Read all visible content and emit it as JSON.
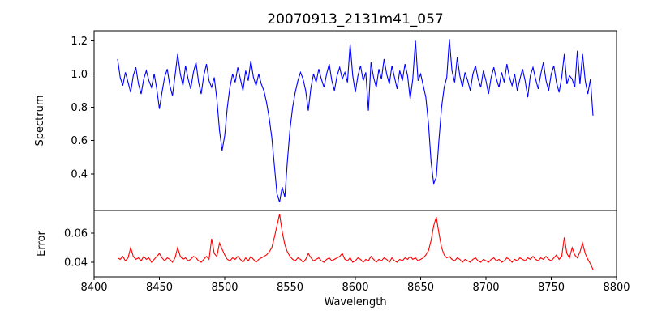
{
  "title": "20070913_2131m41_057",
  "colors": {
    "background": "#ffffff",
    "axis": "#000000",
    "spectrum_line": "#0000ff",
    "error_line": "#ff0000"
  },
  "chart_data": {
    "type": "line",
    "title": "20070913_2131m41_057",
    "xlabel": "Wavelength",
    "xlim": [
      8400,
      8800
    ],
    "xticks": [
      8400,
      8450,
      8500,
      8550,
      8600,
      8650,
      8700,
      8750,
      8800
    ],
    "xtick_labels": [
      "8400",
      "8450",
      "8500",
      "8550",
      "8600",
      "8650",
      "8700",
      "8750",
      "8800"
    ],
    "grid": false,
    "legend": null,
    "notes": "Two stacked panels sharing x-axis; absorption features (Ca II triplet) near 8498, 8542, 8662 with matching error spikes",
    "panels": [
      {
        "ylabel": "Spectrum",
        "ylim": [
          0.18,
          1.26
        ],
        "yticks": [
          0.4,
          0.6,
          0.8,
          1.0,
          1.2
        ],
        "ytick_labels": [
          "0.4",
          "0.6",
          "0.8",
          "1.0",
          "1.2"
        ],
        "series": {
          "name": "spectrum",
          "color": "#0000ff",
          "x_start": 8418,
          "x_step": 2,
          "values": [
            1.09,
            0.98,
            0.93,
            1.01,
            0.95,
            0.89,
            0.99,
            1.04,
            0.94,
            0.88,
            0.97,
            1.02,
            0.96,
            0.92,
            1.0,
            0.91,
            0.79,
            0.89,
            0.98,
            1.03,
            0.93,
            0.87,
            0.99,
            1.12,
            1.0,
            0.93,
            1.05,
            0.97,
            0.91,
            1.01,
            1.07,
            0.95,
            0.88,
            0.99,
            1.06,
            0.96,
            0.92,
            0.98,
            0.85,
            0.66,
            0.54,
            0.63,
            0.8,
            0.92,
            1.0,
            0.95,
            1.04,
            0.97,
            0.9,
            1.02,
            0.96,
            1.08,
            0.98,
            0.93,
            1.0,
            0.94,
            0.9,
            0.83,
            0.74,
            0.62,
            0.45,
            0.28,
            0.23,
            0.32,
            0.26,
            0.48,
            0.67,
            0.8,
            0.89,
            0.96,
            1.01,
            0.97,
            0.9,
            0.78,
            0.92,
            1.0,
            0.95,
            1.03,
            0.97,
            0.92,
            1.0,
            1.06,
            0.96,
            0.9,
            0.99,
            1.04,
            0.97,
            1.01,
            0.95,
            1.18,
            0.99,
            0.89,
            0.99,
            1.05,
            0.96,
            1.01,
            0.78,
            1.07,
            0.98,
            0.92,
            1.03,
            0.97,
            1.09,
            1.0,
            0.94,
            1.05,
            0.98,
            0.91,
            1.02,
            0.96,
            1.06,
            0.99,
            0.85,
            0.97,
            1.2,
            0.96,
            1.0,
            0.93,
            0.86,
            0.7,
            0.47,
            0.34,
            0.38,
            0.6,
            0.8,
            0.92,
            0.98,
            1.21,
            1.02,
            0.95,
            1.1,
            0.99,
            0.92,
            1.01,
            0.96,
            0.9,
            1.0,
            1.05,
            0.97,
            0.92,
            1.02,
            0.96,
            0.88,
            0.98,
            1.04,
            0.97,
            0.92,
            1.01,
            0.95,
            1.06,
            0.98,
            0.93,
            1.0,
            0.9,
            0.97,
            1.03,
            0.96,
            0.86,
            0.99,
            1.04,
            0.97,
            0.91,
            1.0,
            1.07,
            0.96,
            0.9,
            1.0,
            1.05,
            0.95,
            0.89,
            0.98,
            1.12,
            0.94,
            0.99,
            0.97,
            0.92,
            1.14,
            0.94,
            1.12,
            0.96,
            0.88,
            0.97,
            0.75
          ]
        }
      },
      {
        "ylabel": "Error",
        "ylim": [
          0.03,
          0.0755
        ],
        "yticks": [
          0.04,
          0.06
        ],
        "ytick_labels": [
          "0.04",
          "0.06"
        ],
        "series": {
          "name": "error",
          "color": "#ff0000",
          "x_start": 8418,
          "x_step": 2,
          "values": [
            0.043,
            0.042,
            0.044,
            0.041,
            0.043,
            0.05,
            0.044,
            0.042,
            0.043,
            0.041,
            0.044,
            0.042,
            0.043,
            0.04,
            0.042,
            0.044,
            0.046,
            0.043,
            0.041,
            0.043,
            0.042,
            0.04,
            0.043,
            0.05,
            0.044,
            0.042,
            0.043,
            0.041,
            0.042,
            0.044,
            0.043,
            0.041,
            0.04,
            0.042,
            0.044,
            0.042,
            0.056,
            0.046,
            0.044,
            0.053,
            0.049,
            0.045,
            0.042,
            0.041,
            0.043,
            0.042,
            0.044,
            0.042,
            0.04,
            0.043,
            0.041,
            0.044,
            0.042,
            0.04,
            0.042,
            0.043,
            0.044,
            0.045,
            0.047,
            0.05,
            0.057,
            0.065,
            0.073,
            0.061,
            0.052,
            0.047,
            0.044,
            0.042,
            0.041,
            0.043,
            0.042,
            0.04,
            0.042,
            0.046,
            0.043,
            0.041,
            0.042,
            0.043,
            0.041,
            0.04,
            0.042,
            0.043,
            0.041,
            0.042,
            0.043,
            0.044,
            0.046,
            0.042,
            0.041,
            0.043,
            0.04,
            0.041,
            0.043,
            0.042,
            0.04,
            0.042,
            0.041,
            0.044,
            0.042,
            0.04,
            0.042,
            0.041,
            0.043,
            0.042,
            0.04,
            0.043,
            0.041,
            0.04,
            0.042,
            0.041,
            0.043,
            0.042,
            0.044,
            0.042,
            0.043,
            0.041,
            0.042,
            0.043,
            0.045,
            0.048,
            0.055,
            0.065,
            0.071,
            0.06,
            0.05,
            0.045,
            0.043,
            0.044,
            0.042,
            0.041,
            0.043,
            0.042,
            0.04,
            0.042,
            0.041,
            0.04,
            0.042,
            0.043,
            0.041,
            0.04,
            0.042,
            0.041,
            0.04,
            0.042,
            0.043,
            0.041,
            0.042,
            0.04,
            0.041,
            0.043,
            0.042,
            0.04,
            0.042,
            0.041,
            0.043,
            0.042,
            0.041,
            0.043,
            0.042,
            0.044,
            0.042,
            0.041,
            0.043,
            0.042,
            0.044,
            0.042,
            0.041,
            0.043,
            0.045,
            0.042,
            0.044,
            0.057,
            0.046,
            0.043,
            0.05,
            0.045,
            0.043,
            0.047,
            0.053,
            0.046,
            0.042,
            0.039,
            0.035
          ]
        }
      }
    ]
  }
}
